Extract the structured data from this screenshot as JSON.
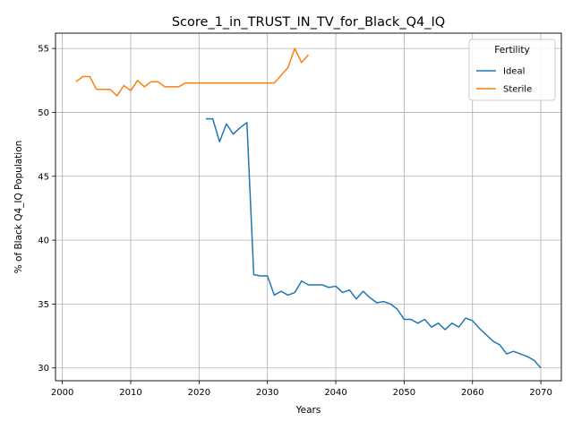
{
  "chart_data": {
    "type": "line",
    "title": "Score_1_in_TRUST_IN_TV_for_Black_Q4_IQ",
    "xlabel": "Years",
    "ylabel": "% of Black Q4_IQ Population",
    "xlim": [
      1999,
      2073
    ],
    "ylim": [
      29,
      56.2
    ],
    "xticks": [
      2000,
      2010,
      2020,
      2030,
      2040,
      2050,
      2060,
      2070
    ],
    "yticks": [
      30,
      35,
      40,
      45,
      50,
      55
    ],
    "grid": true,
    "legend": {
      "title": "Fertility",
      "placement": "top-right"
    },
    "series": [
      {
        "name": "Ideal",
        "color": "#1f77b4",
        "x": [
          2021,
          2022,
          2023,
          2024,
          2025,
          2026,
          2027,
          2028,
          2029,
          2030,
          2031,
          2032,
          2033,
          2034,
          2035,
          2036,
          2037,
          2038,
          2039,
          2040,
          2041,
          2042,
          2043,
          2044,
          2045,
          2046,
          2047,
          2048,
          2049,
          2050,
          2051,
          2052,
          2053,
          2054,
          2055,
          2056,
          2057,
          2058,
          2059,
          2060,
          2061,
          2062,
          2063,
          2064,
          2065,
          2066,
          2067,
          2068,
          2069,
          2070
        ],
        "y": [
          49.5,
          49.5,
          47.7,
          49.1,
          48.3,
          48.8,
          49.2,
          37.3,
          37.2,
          37.2,
          35.7,
          36.0,
          35.7,
          35.9,
          36.8,
          36.5,
          36.5,
          36.5,
          36.3,
          36.4,
          35.9,
          36.1,
          35.4,
          36.0,
          35.5,
          35.1,
          35.2,
          35.0,
          34.6,
          33.8,
          33.8,
          33.5,
          33.8,
          33.2,
          33.5,
          33.0,
          33.5,
          33.2,
          33.9,
          33.7,
          33.1,
          32.6,
          32.1,
          31.8,
          31.1,
          31.3,
          31.1,
          30.9,
          30.6,
          30.0
        ]
      },
      {
        "name": "Sterile",
        "color": "#ff7f0e",
        "x": [
          2002,
          2003,
          2004,
          2005,
          2006,
          2007,
          2008,
          2009,
          2010,
          2011,
          2012,
          2013,
          2014,
          2015,
          2016,
          2017,
          2018,
          2019,
          2020,
          2021,
          2022,
          2023,
          2024,
          2025,
          2026,
          2027,
          2028,
          2029,
          2030,
          2031,
          2032,
          2033,
          2034,
          2035,
          2036
        ],
        "y": [
          52.4,
          52.8,
          52.8,
          51.8,
          51.8,
          51.8,
          51.3,
          52.1,
          51.7,
          52.5,
          52.0,
          52.4,
          52.4,
          52.0,
          52.0,
          52.0,
          52.3,
          52.3,
          52.3,
          52.3,
          52.3,
          52.3,
          52.3,
          52.3,
          52.3,
          52.3,
          52.3,
          52.3,
          52.3,
          52.3,
          52.9,
          53.5,
          55.0,
          53.9,
          54.5
        ]
      }
    ]
  }
}
